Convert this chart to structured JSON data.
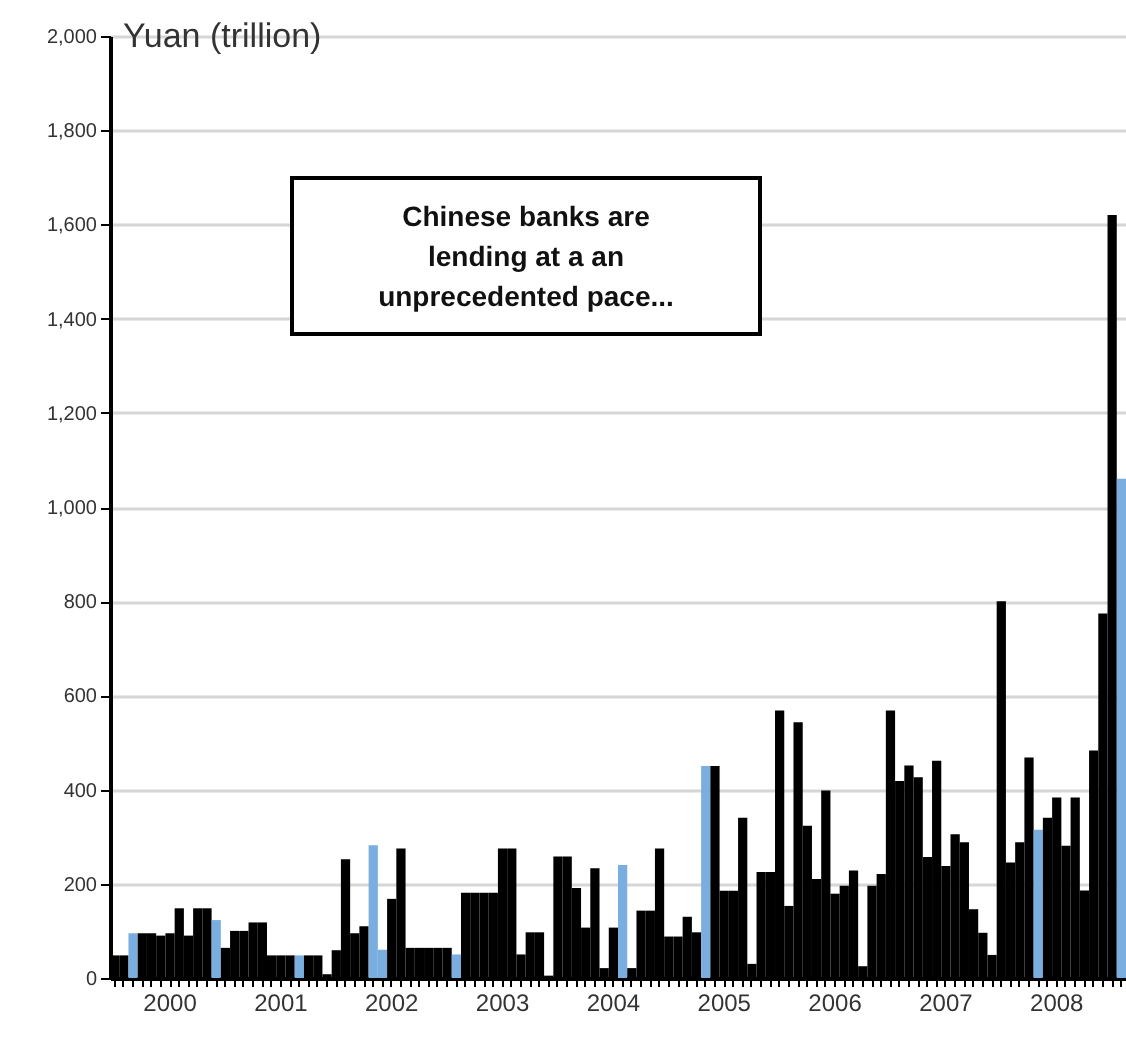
{
  "chart_data": {
    "type": "bar",
    "ylabel": "Yuan (trillion)",
    "annotations": [
      "Chinese banks are lending at a an unprecedented pace..."
    ],
    "categories": [
      null,
      null,
      null,
      null,
      null,
      null,
      "2000",
      null,
      null,
      null,
      null,
      null,
      null,
      null,
      null,
      null,
      null,
      null,
      "2001",
      null,
      null,
      null,
      null,
      null,
      null,
      null,
      null,
      null,
      null,
      null,
      "2002",
      null,
      null,
      null,
      null,
      null,
      null,
      null,
      null,
      null,
      null,
      null,
      "2003",
      null,
      null,
      null,
      null,
      null,
      null,
      null,
      null,
      null,
      null,
      null,
      "2004",
      null,
      null,
      null,
      null,
      null,
      null,
      null,
      null,
      null,
      null,
      null,
      "2005",
      null,
      null,
      null,
      null,
      null,
      null,
      null,
      null,
      null,
      null,
      null,
      "2006",
      null,
      null,
      null,
      null,
      null,
      null,
      null,
      null,
      null,
      null,
      null,
      "2007",
      null,
      null,
      null,
      null,
      null,
      null,
      null,
      null,
      null,
      null,
      null,
      "2008",
      null,
      null,
      null,
      null,
      null,
      null,
      null
    ],
    "values": [
      48,
      48,
      95,
      95,
      95,
      90,
      95,
      148,
      90,
      148,
      148,
      123,
      64,
      100,
      100,
      118,
      118,
      48,
      48,
      48,
      48,
      48,
      48,
      8,
      59,
      252,
      95,
      110,
      282,
      60,
      168,
      275,
      64,
      64,
      64,
      64,
      64,
      50,
      181,
      181,
      181,
      181,
      275,
      275,
      50,
      97,
      97,
      5,
      258,
      258,
      191,
      107,
      233,
      21,
      107,
      240,
      21,
      143,
      143,
      275,
      88,
      88,
      130,
      97,
      450,
      450,
      185,
      185,
      340,
      30,
      225,
      225,
      568,
      153,
      543,
      323,
      210,
      398,
      179,
      196,
      228,
      25,
      196,
      221,
      568,
      418,
      451,
      426,
      257,
      461,
      238,
      305,
      288,
      146,
      96,
      49,
      800,
      245,
      288,
      468,
      315,
      340,
      383,
      281,
      383,
      186,
      483,
      774,
      1620,
      1060
    ],
    "colors": [
      "#000000",
      "#000000",
      "#7aaee0",
      "#000000",
      "#000000",
      "#000000",
      "#000000",
      "#000000",
      "#000000",
      "#000000",
      "#000000",
      "#7aaee0",
      "#000000",
      "#000000",
      "#000000",
      "#000000",
      "#000000",
      "#000000",
      "#000000",
      "#000000",
      "#7aaee0",
      "#000000",
      "#000000",
      "#000000",
      "#000000",
      "#000000",
      "#000000",
      "#000000",
      "#7aaee0",
      "#7aaee0",
      "#000000",
      "#000000",
      "#000000",
      "#000000",
      "#000000",
      "#000000",
      "#000000",
      "#7aaee0",
      "#000000",
      "#000000",
      "#000000",
      "#000000",
      "#000000",
      "#000000",
      "#000000",
      "#000000",
      "#000000",
      "#000000",
      "#000000",
      "#000000",
      "#000000",
      "#000000",
      "#000000",
      "#000000",
      "#000000",
      "#7aaee0",
      "#000000",
      "#000000",
      "#000000",
      "#000000",
      "#000000",
      "#000000",
      "#000000",
      "#000000",
      "#7aaee0",
      "#000000",
      "#000000",
      "#000000",
      "#000000",
      "#000000",
      "#000000",
      "#000000",
      "#000000",
      "#000000",
      "#000000",
      "#000000",
      "#000000",
      "#000000",
      "#000000",
      "#000000",
      "#000000",
      "#000000",
      "#000000",
      "#000000",
      "#000000",
      "#000000",
      "#000000",
      "#000000",
      "#000000",
      "#000000",
      "#000000",
      "#000000",
      "#000000",
      "#000000",
      "#000000",
      "#000000",
      "#000000",
      "#000000",
      "#000000",
      "#000000",
      "#7aaee0",
      "#000000",
      "#000000",
      "#000000",
      "#000000",
      "#000000",
      "#000000",
      "#000000",
      "#000000",
      "#7aaee0"
    ],
    "ylim": [
      0,
      2000
    ],
    "yticks": [
      0,
      200,
      400,
      600,
      800,
      {
        "value": 1000,
        "label": "1,000"
      },
      {
        "value": 1200,
        "label": "1,200"
      },
      {
        "value": 1400,
        "label": "1,400"
      },
      {
        "value": 1600,
        "label": "1,600"
      },
      {
        "value": 1800,
        "label": "1,800"
      },
      {
        "value": 2000,
        "label": "2,000"
      }
    ],
    "grid": "y"
  }
}
